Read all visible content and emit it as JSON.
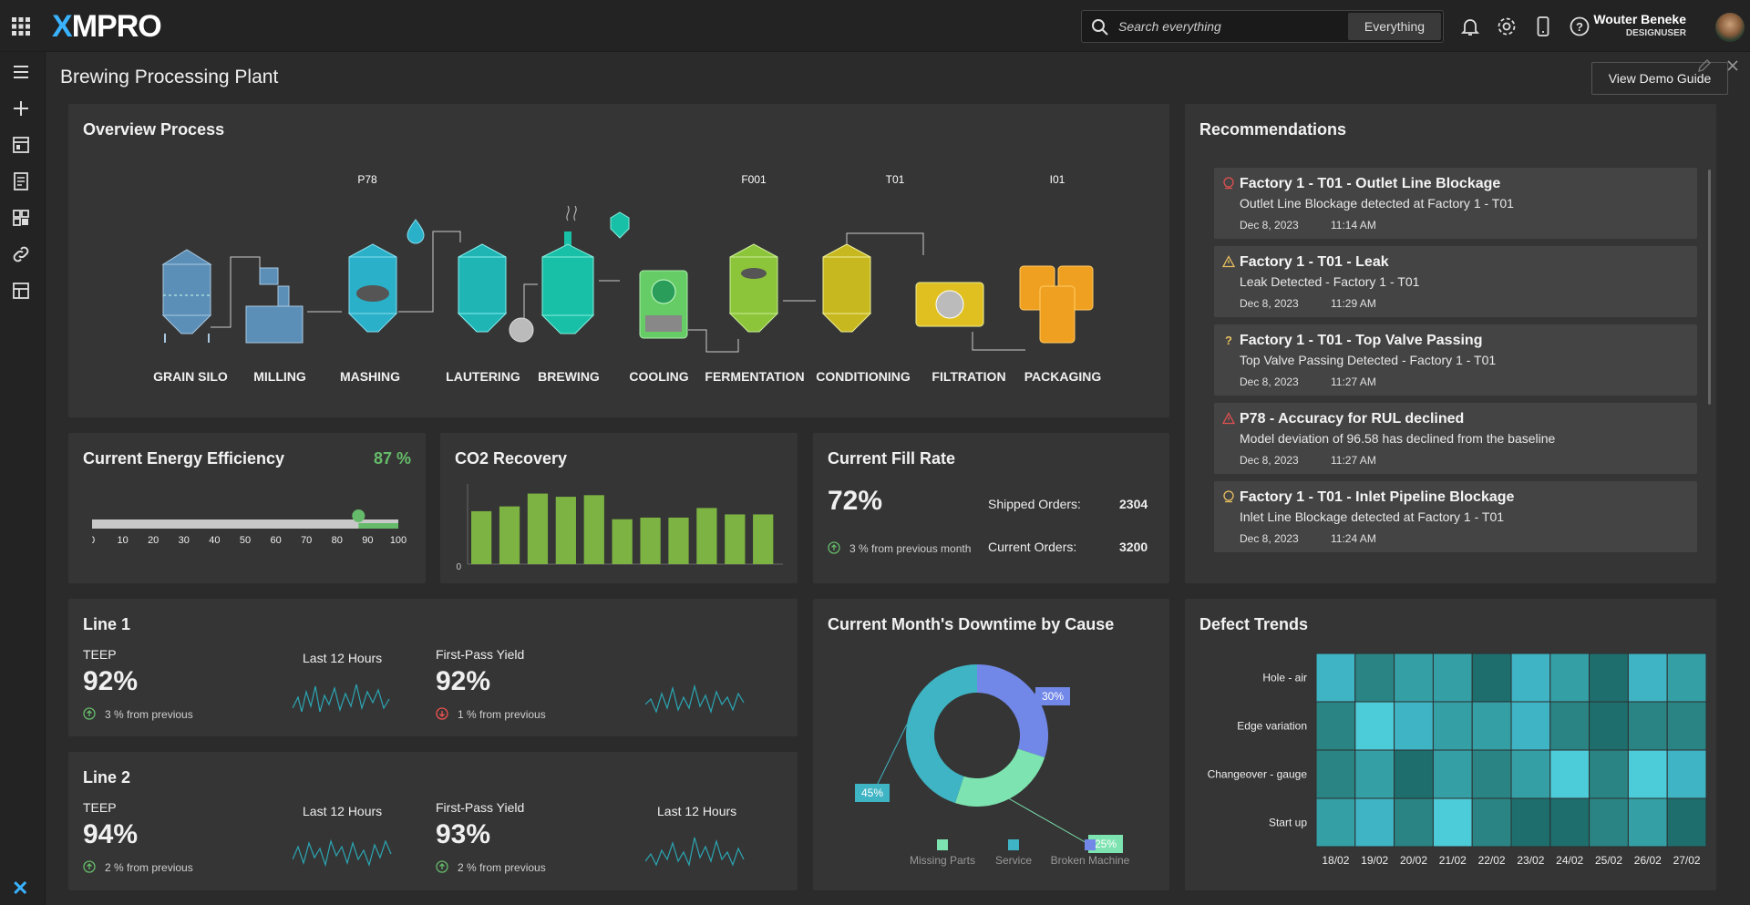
{
  "header": {
    "logo": "XMPRO",
    "search_placeholder": "Search everything",
    "search_scope": "Everything",
    "user_name": "Wouter Beneke",
    "user_role": "DESIGNUSER"
  },
  "page": {
    "title": "Brewing Processing Plant",
    "demo_button": "View Demo Guide"
  },
  "overview": {
    "title": "Overview Process",
    "stages": [
      "GRAIN SILO",
      "MILLING",
      "MASHING",
      "LAUTERING",
      "BREWING",
      "COOLING",
      "FERMENTATION",
      "CONDITIONING",
      "FILTRATION",
      "PACKAGING"
    ],
    "tags": [
      {
        "label": "P78",
        "color": "#d0604a"
      },
      {
        "label": "F001",
        "color": "#e8c060"
      },
      {
        "label": "T01",
        "color": "#e8c060"
      },
      {
        "label": "I01",
        "color": "#e8a060"
      }
    ]
  },
  "recommendations": {
    "title": "Recommendations",
    "items": [
      {
        "title": "Factory 1 - T01 - Outlet Line Blockage",
        "desc": "Outlet Line Blockage detected at Factory 1 - T01",
        "date": "Dec 8, 2023",
        "time": "11:14 AM",
        "icon": "alert-badge-icon",
        "color": "#e05050"
      },
      {
        "title": "Factory 1 - T01 - Leak",
        "desc": "Leak Detected - Factory 1 - T01",
        "date": "Dec 8, 2023",
        "time": "11:29 AM",
        "icon": "warning-triangle-icon",
        "color": "#e8c060"
      },
      {
        "title": "Factory 1 - T01 - Top Valve Passing",
        "desc": "Top Valve Passing Detected - Factory 1 - T01",
        "date": "Dec 8, 2023",
        "time": "11:27 AM",
        "icon": "question-icon",
        "color": "#e8c060"
      },
      {
        "title": "P78 - Accuracy for RUL declined",
        "desc": "Model deviation of 96.58 has declined from the baseline",
        "date": "Dec 8, 2023",
        "time": "11:27 AM",
        "icon": "warning-triangle-icon",
        "color": "#e05050"
      },
      {
        "title": "Factory 1 - T01 - Inlet Pipeline Blockage",
        "desc": "Inlet Line Blockage detected at Factory 1 - T01",
        "date": "Dec 8, 2023",
        "time": "11:24 AM",
        "icon": "alert-badge-icon",
        "color": "#e8c060"
      }
    ]
  },
  "energy": {
    "title": "Current Energy Efficiency",
    "value_label": "87 %",
    "value": 87,
    "ticks": [
      "0",
      "10",
      "20",
      "30",
      "40",
      "50",
      "60",
      "70",
      "80",
      "90",
      "100"
    ]
  },
  "co2": {
    "title": "CO2 Recovery",
    "axis_zero": "0"
  },
  "fill": {
    "title": "Current Fill Rate",
    "value": "72%",
    "delta": "3 % from previous month",
    "shipped_label": "Shipped Orders:",
    "shipped": "2304",
    "current_label": "Current Orders:",
    "current": "3200"
  },
  "line1": {
    "title": "Line 1",
    "teep_label": "TEEP",
    "teep": "92%",
    "teep_delta": "3 % from previous",
    "last12": "Last 12 Hours",
    "fpy_label": "First-Pass Yield",
    "fpy": "92%",
    "fpy_delta": "1 % from previous"
  },
  "line2": {
    "title": "Line 2",
    "teep_label": "TEEP",
    "teep": "94%",
    "teep_delta": "2 % from previous",
    "last12": "Last 12 Hours",
    "fpy_label": "First-Pass Yield",
    "fpy": "93%",
    "fpy_delta": "2 % from previous",
    "last12b": "Last 12 Hours"
  },
  "downtime": {
    "title": "Current Month's Downtime by Cause"
  },
  "defects": {
    "title": "Defect Trends"
  },
  "colors": {
    "accent": "#3ab3ff",
    "green": "#7cb342",
    "teal": "#3fb4c4"
  },
  "chart_data": [
    {
      "type": "bar",
      "name": "co2-recovery",
      "values": [
        66,
        72,
        88,
        84,
        86,
        56,
        58,
        58,
        70,
        62,
        62
      ],
      "ylim": [
        0,
        100
      ],
      "ytick": "0"
    },
    {
      "type": "pie",
      "name": "downtime",
      "slices": [
        {
          "label": "Missing Parts",
          "value": 25,
          "text": "25%",
          "color": "#7de3b0"
        },
        {
          "label": "Service",
          "value": 45,
          "text": "45%",
          "color": "#3fb4c4"
        },
        {
          "label": "Broken Machine",
          "value": 30,
          "text": "30%",
          "color": "#7188e8"
        }
      ]
    },
    {
      "type": "heatmap",
      "name": "defect-trends",
      "rows": [
        "Hole - air",
        "Edge variation",
        "Changeover - gauge",
        "Start up"
      ],
      "cols": [
        "18/02",
        "19/02",
        "20/02",
        "21/02",
        "22/02",
        "23/02",
        "24/02",
        "25/02",
        "26/02",
        "27/02"
      ],
      "values": [
        [
          4,
          2,
          3,
          3,
          1,
          4,
          3,
          1,
          4,
          3
        ],
        [
          2,
          5,
          4,
          3,
          3,
          4,
          2,
          1,
          2,
          2
        ],
        [
          2,
          3,
          1,
          3,
          2,
          3,
          5,
          2,
          5,
          4
        ],
        [
          3,
          4,
          2,
          5,
          2,
          1,
          1,
          2,
          3,
          1
        ]
      ]
    }
  ]
}
